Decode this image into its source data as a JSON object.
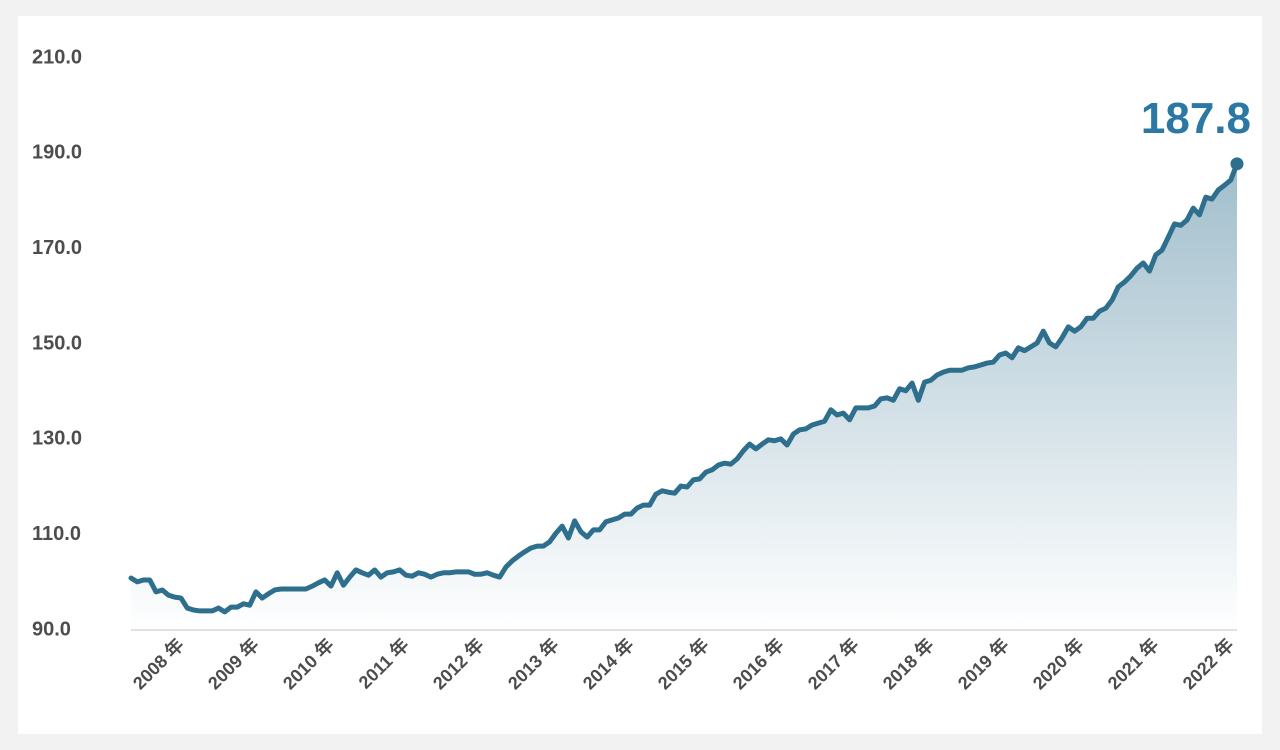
{
  "chart_data": {
    "type": "area-line",
    "categories": [
      null,
      null,
      null,
      null,
      null,
      null,
      null,
      null,
      "2008 年",
      null,
      null,
      null,
      null,
      null,
      null,
      null,
      null,
      null,
      null,
      null,
      "2009 年",
      null,
      null,
      null,
      null,
      null,
      null,
      null,
      null,
      null,
      null,
      null,
      "2010 年",
      null,
      null,
      null,
      null,
      null,
      null,
      null,
      null,
      null,
      null,
      null,
      "2011 年",
      null,
      null,
      null,
      null,
      null,
      null,
      null,
      null,
      null,
      null,
      null,
      "2012 年",
      null,
      null,
      null,
      null,
      null,
      null,
      null,
      null,
      null,
      null,
      null,
      "2013 年",
      null,
      null,
      null,
      null,
      null,
      null,
      null,
      null,
      null,
      null,
      null,
      "2014 年",
      null,
      null,
      null,
      null,
      null,
      null,
      null,
      null,
      null,
      null,
      null,
      "2015 年",
      null,
      null,
      null,
      null,
      null,
      null,
      null,
      null,
      null,
      null,
      null,
      "2016 年",
      null,
      null,
      null,
      null,
      null,
      null,
      null,
      null,
      null,
      null,
      null,
      "2017 年",
      null,
      null,
      null,
      null,
      null,
      null,
      null,
      null,
      null,
      null,
      null,
      "2018 年",
      null,
      null,
      null,
      null,
      null,
      null,
      null,
      null,
      null,
      null,
      null,
      "2019 年",
      null,
      null,
      null,
      null,
      null,
      null,
      null,
      null,
      null,
      null,
      null,
      "2020 年",
      null,
      null,
      null,
      null,
      null,
      null,
      null,
      null,
      null,
      null,
      null,
      "2021 年",
      null,
      null,
      null,
      null,
      null,
      null,
      null,
      null,
      null,
      null,
      null,
      "2022 年",
      null
    ],
    "values": [
      100.9,
      100.1,
      100.5,
      100.5,
      98.0,
      98.4,
      97.3,
      96.9,
      96.7,
      94.6,
      94.2,
      94.0,
      94.0,
      94.0,
      94.6,
      93.8,
      94.8,
      94.8,
      95.5,
      95.2,
      98.0,
      96.7,
      97.6,
      98.4,
      98.6,
      98.6,
      98.6,
      98.6,
      98.6,
      99.2,
      99.9,
      100.5,
      99.2,
      102.0,
      99.4,
      101.1,
      102.6,
      102.0,
      101.5,
      102.6,
      101.1,
      102.0,
      102.2,
      102.6,
      101.5,
      101.3,
      102.0,
      101.7,
      101.1,
      101.7,
      102.0,
      102.0,
      102.2,
      102.2,
      102.2,
      101.7,
      101.7,
      102.0,
      101.5,
      101.1,
      103.2,
      104.5,
      105.5,
      106.4,
      107.2,
      107.6,
      107.6,
      108.5,
      110.3,
      111.8,
      109.3,
      112.9,
      110.6,
      109.5,
      111.0,
      111.0,
      112.7,
      113.1,
      113.5,
      114.3,
      114.3,
      115.6,
      116.2,
      116.2,
      118.5,
      119.2,
      118.9,
      118.7,
      120.2,
      120.0,
      121.5,
      121.7,
      123.1,
      123.6,
      124.6,
      125.0,
      124.8,
      125.9,
      127.6,
      129.0,
      128.0,
      129.0,
      129.9,
      129.7,
      130.1,
      128.8,
      131.1,
      132.0,
      132.2,
      133.0,
      133.4,
      133.8,
      136.2,
      135.1,
      135.5,
      134.1,
      136.6,
      136.6,
      136.6,
      137.0,
      138.5,
      138.7,
      138.2,
      140.6,
      140.2,
      141.8,
      138.2,
      142.0,
      142.4,
      143.5,
      144.1,
      144.5,
      144.5,
      144.5,
      145.0,
      145.2,
      145.6,
      146.0,
      146.2,
      147.7,
      148.1,
      147.1,
      149.2,
      148.6,
      149.4,
      150.2,
      152.7,
      150.2,
      149.4,
      151.3,
      153.6,
      152.7,
      153.6,
      155.4,
      155.4,
      156.9,
      157.5,
      159.2,
      162.0,
      163.0,
      164.3,
      165.9,
      167.0,
      165.3,
      168.7,
      169.7,
      172.4,
      175.2,
      174.9,
      176.0,
      178.5,
      177.1,
      180.8,
      180.4,
      182.3,
      183.3,
      184.4,
      187.8
    ],
    "color": "#2e6f8e",
    "ylim": [
      90,
      210
    ],
    "yticks": [
      {
        "value": 90,
        "label": "90.0"
      },
      {
        "value": 110,
        "label": "110.0"
      },
      {
        "value": 130,
        "label": "130.0"
      },
      {
        "value": 150,
        "label": "150.0"
      },
      {
        "value": 170,
        "label": "170.0"
      },
      {
        "value": 190,
        "label": "190.0"
      },
      {
        "value": 210,
        "label": "210.0"
      }
    ]
  }
}
